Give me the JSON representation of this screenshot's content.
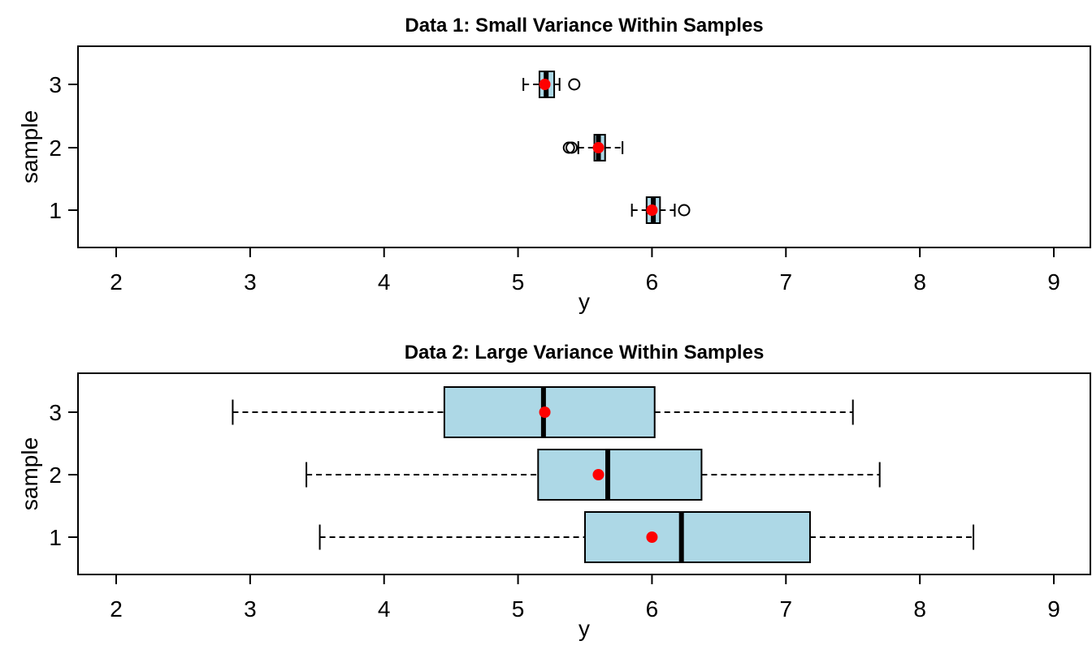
{
  "figure": {
    "background": "#ffffff"
  },
  "chart_data": [
    {
      "type": "boxplot",
      "orientation": "horizontal",
      "title": "Data 1: Small Variance Within Samples",
      "xlabel": "y",
      "ylabel": "sample",
      "xlim": [
        2,
        9
      ],
      "xticks": [
        "2",
        "3",
        "4",
        "5",
        "6",
        "7",
        "8",
        "9"
      ],
      "yticks": [
        "1",
        "2",
        "3"
      ],
      "box_color": "#add8e6",
      "mean_color": "#ff0000",
      "grid": false,
      "series": [
        {
          "name": "1",
          "whisker_low": 5.85,
          "q1": 5.96,
          "median": 6.01,
          "q3": 6.06,
          "whisker_high": 6.17,
          "mean": 6.0,
          "outliers": [
            6.24
          ]
        },
        {
          "name": "2",
          "whisker_low": 5.45,
          "q1": 5.57,
          "median": 5.6,
          "q3": 5.65,
          "whisker_high": 5.78,
          "mean": 5.6,
          "outliers": [
            5.38,
            5.4
          ]
        },
        {
          "name": "3",
          "whisker_low": 5.04,
          "q1": 5.16,
          "median": 5.21,
          "q3": 5.27,
          "whisker_high": 5.31,
          "mean": 5.2,
          "outliers": [
            5.42
          ]
        }
      ]
    },
    {
      "type": "boxplot",
      "orientation": "horizontal",
      "title": "Data 2: Large Variance Within Samples",
      "xlabel": "y",
      "ylabel": "sample",
      "xlim": [
        2,
        9
      ],
      "xticks": [
        "2",
        "3",
        "4",
        "5",
        "6",
        "7",
        "8",
        "9"
      ],
      "yticks": [
        "1",
        "2",
        "3"
      ],
      "box_color": "#add8e6",
      "mean_color": "#ff0000",
      "grid": false,
      "series": [
        {
          "name": "1",
          "whisker_low": 3.52,
          "q1": 5.5,
          "median": 6.22,
          "q3": 7.18,
          "whisker_high": 8.4,
          "mean": 6.0,
          "outliers": []
        },
        {
          "name": "2",
          "whisker_low": 3.42,
          "q1": 5.15,
          "median": 5.67,
          "q3": 6.37,
          "whisker_high": 7.7,
          "mean": 5.6,
          "outliers": []
        },
        {
          "name": "3",
          "whisker_low": 2.87,
          "q1": 4.45,
          "median": 5.19,
          "q3": 6.02,
          "whisker_high": 7.5,
          "mean": 5.2,
          "outliers": []
        }
      ]
    }
  ]
}
